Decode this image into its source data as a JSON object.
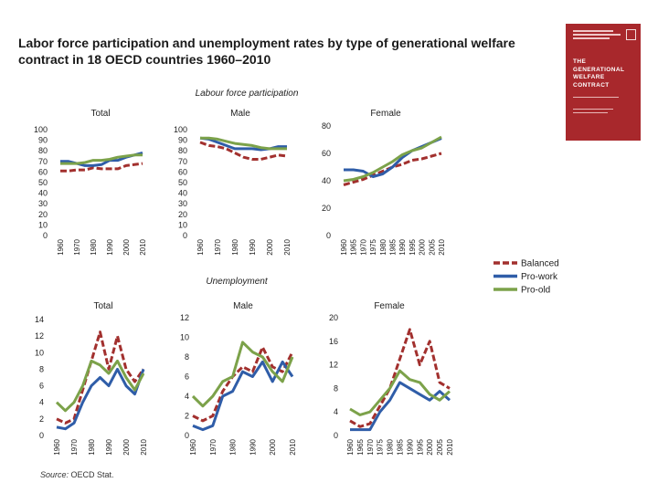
{
  "title": "Labor force participation and unemployment rates by type of generational welfare contract in 18 OECD countries 1960–2010",
  "source": {
    "label": "Source:",
    "text": " OECD Stat."
  },
  "colors": {
    "balanced": "#a2302e",
    "pro_work": "#2f5da8",
    "pro_old": "#7ca24a"
  },
  "book_cover": {
    "title_lines": [
      "THE",
      "GENERATIONAL",
      "WELFARE",
      "CONTRACT"
    ]
  },
  "legend": [
    {
      "name": "Balanced",
      "style": "dashed",
      "color": "#a2302e"
    },
    {
      "name": "Pro-work",
      "style": "solid",
      "color": "#2f5da8"
    },
    {
      "name": "Pro-old",
      "style": "solid",
      "color": "#7ca24a"
    }
  ],
  "chart_data": [
    {
      "type": "line",
      "section": "Labour force participation",
      "subtitle": "Total",
      "x": [
        1960,
        1965,
        1970,
        1975,
        1980,
        1985,
        1990,
        1995,
        2000,
        2005,
        2010
      ],
      "xticks": [
        "1960",
        "1970",
        "1980",
        "1990",
        "2000",
        "2010"
      ],
      "ylim": [
        0,
        100
      ],
      "yticks": [
        0,
        10,
        20,
        30,
        40,
        50,
        60,
        70,
        80,
        90,
        100
      ],
      "series": [
        {
          "name": "Balanced",
          "values": [
            61,
            61,
            62,
            62,
            64,
            63,
            63,
            63,
            66,
            67,
            68
          ]
        },
        {
          "name": "Pro-work",
          "values": [
            70,
            70,
            68,
            66,
            66,
            67,
            71,
            71,
            74,
            76,
            78
          ]
        },
        {
          "name": "Pro-old",
          "values": [
            68,
            68,
            68,
            69,
            71,
            71,
            72,
            74,
            75,
            76,
            76
          ]
        }
      ]
    },
    {
      "type": "line",
      "section": "Labour force participation",
      "subtitle": "Male",
      "x": [
        1960,
        1965,
        1970,
        1975,
        1980,
        1985,
        1990,
        1995,
        2000,
        2005,
        2010
      ],
      "xticks": [
        "1960",
        "1970",
        "1980",
        "1990",
        "2000",
        "2010"
      ],
      "ylim": [
        0,
        100
      ],
      "yticks": [
        0,
        10,
        20,
        30,
        40,
        50,
        60,
        70,
        80,
        90,
        100
      ],
      "series": [
        {
          "name": "Balanced",
          "values": [
            88,
            85,
            84,
            82,
            78,
            74,
            72,
            72,
            74,
            76,
            75
          ]
        },
        {
          "name": "Pro-work",
          "values": [
            92,
            91,
            88,
            85,
            82,
            82,
            82,
            81,
            82,
            84,
            84
          ]
        },
        {
          "name": "Pro-old",
          "values": [
            92,
            92,
            91,
            89,
            87,
            86,
            85,
            83,
            82,
            82,
            82
          ]
        }
      ]
    },
    {
      "type": "line",
      "section": "Labour force participation",
      "subtitle": "Female",
      "x": [
        1960,
        1965,
        1970,
        1975,
        1980,
        1985,
        1990,
        1995,
        2000,
        2005,
        2010
      ],
      "xticks": [
        "1960",
        "1965",
        "1970",
        "1975",
        "1980",
        "1985",
        "1990",
        "1995",
        "2000",
        "2005",
        "2010"
      ],
      "ylim": [
        0,
        80
      ],
      "yticks": [
        0,
        20,
        40,
        60,
        80
      ],
      "series": [
        {
          "name": "Balanced",
          "values": [
            37,
            39,
            41,
            44,
            47,
            50,
            52,
            55,
            56,
            58,
            60
          ]
        },
        {
          "name": "Pro-work",
          "values": [
            48,
            48,
            47,
            43,
            45,
            50,
            57,
            62,
            65,
            68,
            71
          ]
        },
        {
          "name": "Pro-old",
          "values": [
            40,
            41,
            43,
            46,
            50,
            54,
            59,
            62,
            64,
            68,
            72
          ]
        }
      ]
    },
    {
      "type": "line",
      "section": "Unemployment",
      "subtitle": "Total",
      "x": [
        1960,
        1965,
        1970,
        1975,
        1980,
        1985,
        1990,
        1995,
        2000,
        2005,
        2010
      ],
      "xticks": [
        "1960",
        "1970",
        "1980",
        "1990",
        "2000",
        "2010"
      ],
      "ylim": [
        0,
        14
      ],
      "yticks": [
        0,
        2,
        4,
        6,
        8,
        10,
        12,
        14
      ],
      "series": [
        {
          "name": "Balanced",
          "values": [
            2,
            1.5,
            2,
            5.5,
            9,
            12.5,
            8,
            12,
            8,
            6.5,
            8
          ]
        },
        {
          "name": "Pro-work",
          "values": [
            1,
            0.8,
            1.5,
            4,
            6,
            7,
            6,
            8,
            6,
            5,
            8
          ]
        },
        {
          "name": "Pro-old",
          "values": [
            4,
            3,
            4,
            6,
            9,
            8.5,
            7.5,
            9,
            7,
            5.5,
            7.5
          ]
        }
      ]
    },
    {
      "type": "line",
      "section": "Unemployment",
      "subtitle": "Male",
      "x": [
        1960,
        1965,
        1970,
        1975,
        1980,
        1985,
        1990,
        1995,
        2000,
        2005,
        2010
      ],
      "xticks": [
        "1960",
        "1970",
        "1980",
        "1990",
        "2000",
        "2010"
      ],
      "ylim": [
        0,
        12
      ],
      "yticks": [
        0,
        2,
        4,
        6,
        8,
        10,
        12
      ],
      "series": [
        {
          "name": "Balanced",
          "values": [
            2,
            1.5,
            2,
            4.5,
            6,
            7,
            6.5,
            9,
            7,
            6.5,
            8.5
          ]
        },
        {
          "name": "Pro-work",
          "values": [
            1,
            0.6,
            1,
            4,
            4.5,
            6.5,
            6,
            7.5,
            5.5,
            7.5,
            6
          ]
        },
        {
          "name": "Pro-old",
          "values": [
            4,
            3,
            4,
            5.5,
            6,
            9.5,
            8.5,
            8,
            6.5,
            5.5,
            8
          ]
        }
      ]
    },
    {
      "type": "line",
      "section": "Unemployment",
      "subtitle": "Female",
      "x": [
        1960,
        1965,
        1970,
        1975,
        1980,
        1985,
        1990,
        1995,
        2000,
        2005,
        2010
      ],
      "xticks": [
        "1960",
        "1965",
        "1970",
        "1975",
        "1980",
        "1985",
        "1990",
        "1995",
        "2000",
        "2005",
        "2010"
      ],
      "ylim": [
        0,
        20
      ],
      "yticks": [
        0,
        4,
        8,
        12,
        16,
        20
      ],
      "series": [
        {
          "name": "Balanced",
          "values": [
            2.5,
            1.5,
            2,
            5,
            8,
            13,
            18,
            12,
            16,
            9,
            8
          ]
        },
        {
          "name": "Pro-work",
          "values": [
            1,
            1,
            1,
            4,
            6,
            9,
            8,
            7,
            6,
            7.5,
            6
          ]
        },
        {
          "name": "Pro-old",
          "values": [
            4.5,
            3.5,
            4,
            6,
            8,
            11,
            9.5,
            9,
            7,
            6,
            7.5
          ]
        }
      ]
    }
  ]
}
